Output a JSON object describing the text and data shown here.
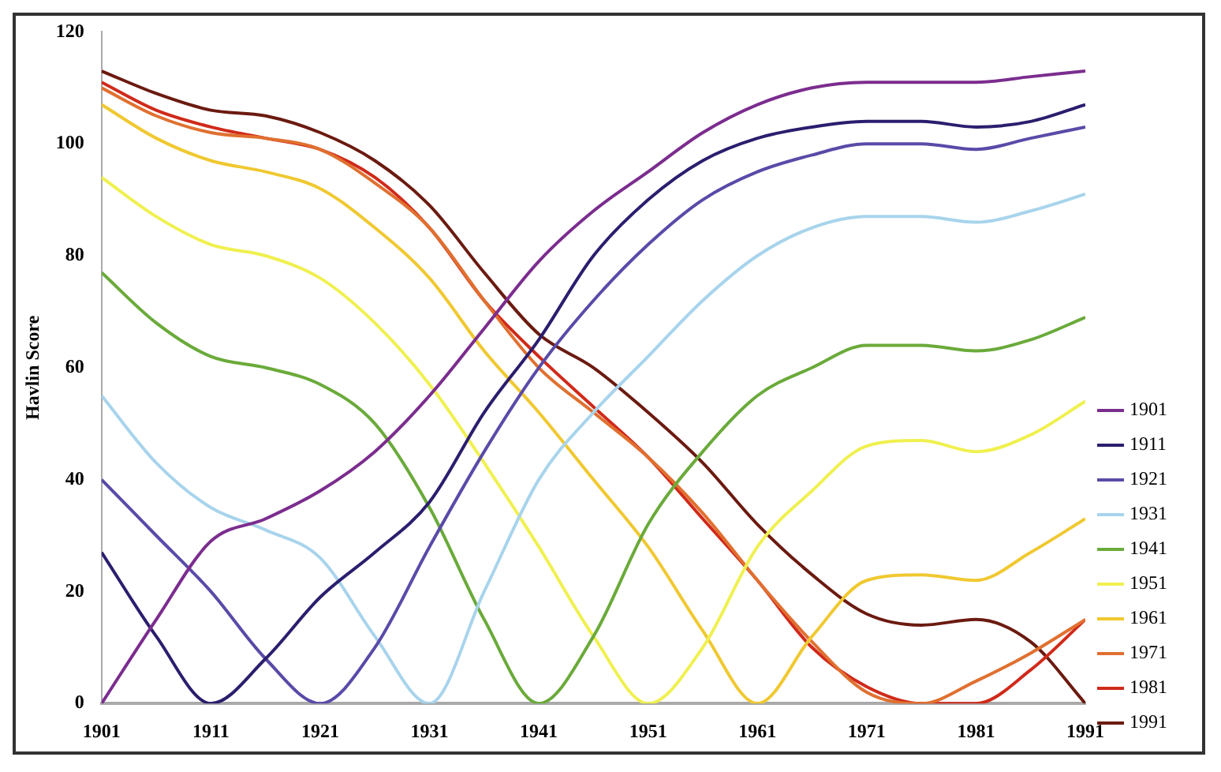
{
  "chart_data": {
    "type": "line",
    "ylabel": "Havlin Score",
    "x": [
      1901,
      1906,
      1911,
      1916,
      1921,
      1926,
      1931,
      1936,
      1941,
      1946,
      1951,
      1956,
      1961,
      1966,
      1971,
      1976,
      1981,
      1986,
      1991
    ],
    "xlim": [
      1901,
      1991
    ],
    "xticks": [
      1901,
      1911,
      1921,
      1931,
      1941,
      1951,
      1961,
      1971,
      1981,
      1991
    ],
    "ylim": [
      0,
      120
    ],
    "yticks": [
      0,
      20,
      40,
      60,
      80,
      100,
      120
    ],
    "grid": false,
    "legend": "right",
    "marker": "none",
    "line_style": "solid",
    "series": [
      {
        "name": "1901",
        "color": "#7b2d8e",
        "values": [
          0,
          15,
          29,
          33,
          38,
          45,
          55,
          67,
          79,
          88,
          95,
          102,
          107,
          110,
          111,
          111,
          111,
          112,
          113
        ]
      },
      {
        "name": "1911",
        "color": "#2b1e6e",
        "values": [
          27,
          12,
          0,
          8,
          19,
          27,
          36,
          52,
          65,
          80,
          90,
          97,
          101,
          103,
          104,
          104,
          103,
          104,
          107
        ]
      },
      {
        "name": "1921",
        "color": "#5a4aa8",
        "values": [
          40,
          30,
          20,
          8,
          0,
          10,
          28,
          45,
          60,
          72,
          82,
          90,
          95,
          98,
          100,
          100,
          99,
          101,
          103
        ]
      },
      {
        "name": "1931",
        "color": "#a8d4ec",
        "values": [
          55,
          43,
          35,
          31,
          26,
          12,
          0,
          20,
          40,
          52,
          62,
          72,
          80,
          85,
          87,
          87,
          86,
          88,
          91
        ]
      },
      {
        "name": "1941",
        "color": "#6aaa3a",
        "values": [
          77,
          68,
          62,
          60,
          57,
          50,
          35,
          15,
          0,
          12,
          32,
          45,
          55,
          60,
          64,
          64,
          63,
          65,
          69
        ]
      },
      {
        "name": "1951",
        "color": "#f0f050",
        "values": [
          94,
          87,
          82,
          80,
          76,
          68,
          57,
          43,
          28,
          12,
          0,
          10,
          28,
          38,
          46,
          47,
          45,
          48,
          54
        ]
      },
      {
        "name": "1961",
        "color": "#f0c830",
        "values": [
          107,
          101,
          97,
          95,
          92,
          85,
          76,
          63,
          52,
          40,
          28,
          13,
          0,
          12,
          22,
          23,
          22,
          27,
          33
        ]
      },
      {
        "name": "1971",
        "color": "#e07030",
        "values": [
          110,
          105,
          102,
          101,
          99,
          93,
          85,
          72,
          60,
          52,
          44,
          34,
          22,
          11,
          2,
          0,
          4,
          9,
          15
        ]
      },
      {
        "name": "1981",
        "color": "#d02a1a",
        "values": [
          111,
          106,
          103,
          101,
          99,
          94,
          85,
          72,
          62,
          53,
          44,
          33,
          22,
          10,
          3,
          0,
          0,
          6,
          15
        ]
      },
      {
        "name": "1991",
        "color": "#6b1a10",
        "values": [
          113,
          109,
          106,
          105,
          102,
          97,
          89,
          77,
          66,
          60,
          52,
          43,
          32,
          23,
          16,
          14,
          15,
          11,
          0
        ]
      }
    ]
  }
}
